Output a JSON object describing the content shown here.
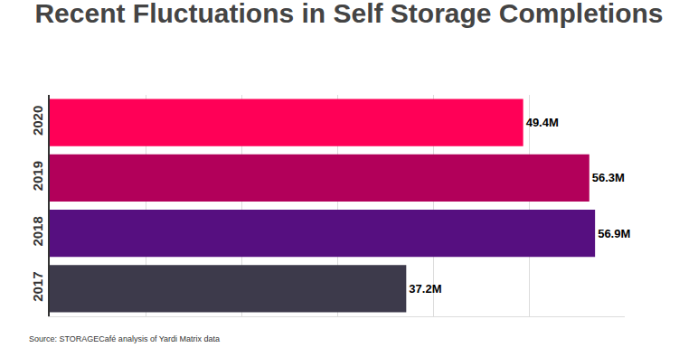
{
  "chart_data": {
    "type": "bar",
    "title": "Recent Fluctuations in Self Storage Completions",
    "source": "Source: STORAGECafé analysis of Yardi Matrix data",
    "orientation": "horizontal",
    "categories": [
      "2017",
      "2018",
      "2019",
      "2020"
    ],
    "values": [
      37.2,
      56.9,
      56.3,
      49.4
    ],
    "value_labels": [
      "37.2M",
      "56.9M",
      "56.3M",
      "49.4M"
    ],
    "colors": [
      "#3d3a4b",
      "#560f80",
      "#b2005a",
      "#ff0057"
    ],
    "xlim": [
      0,
      60
    ],
    "xticks": [
      0,
      10,
      20,
      30,
      40,
      50,
      60
    ],
    "grid": true,
    "data_labels": true,
    "tick_labels": "y"
  }
}
